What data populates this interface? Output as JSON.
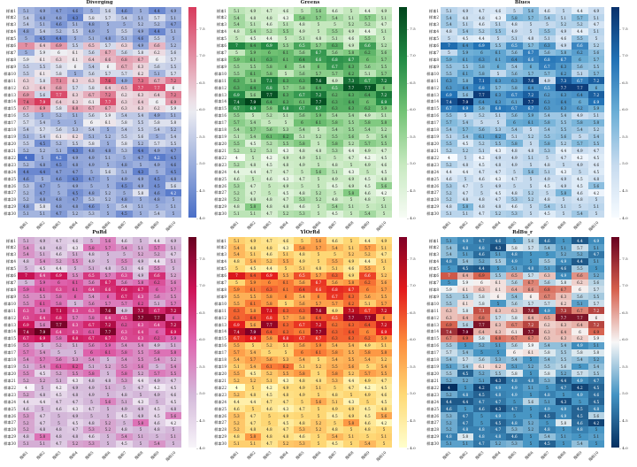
{
  "row_labels": [
    "样本1",
    "样本2",
    "样本3",
    "样本4",
    "样本5",
    "样本6",
    "样本7",
    "样本8",
    "样本9",
    "样本10",
    "样本11",
    "样本12",
    "样本13",
    "样本14",
    "样本15",
    "样本16",
    "样本17",
    "样本18",
    "样本19",
    "样本20",
    "样本21",
    "样本22",
    "样本23",
    "样本24",
    "样本25",
    "样本26",
    "样本27",
    "样本28",
    "样本29",
    "样本30"
  ],
  "col_labels": [
    "指标1",
    "指标2",
    "指标3",
    "指标4",
    "指标5",
    "指标6",
    "指标7",
    "指标8",
    "指标9",
    "指标10"
  ],
  "matrix": [
    [
      5.1,
      4.9,
      4.7,
      4.6,
      5,
      5.6,
      4.6,
      5,
      4.4,
      4.9
    ],
    [
      5.4,
      4.8,
      4.8,
      4.3,
      5.8,
      5.7,
      5.4,
      5.1,
      5.7,
      5.1
    ],
    [
      5.4,
      5.1,
      4.6,
      5.1,
      4.8,
      5,
      5,
      5.2,
      5.2,
      4.7
    ],
    [
      4.8,
      5.4,
      5.2,
      5.5,
      4.9,
      5,
      5.5,
      4.9,
      4.4,
      5.1
    ],
    [
      5,
      4.5,
      4.4,
      5,
      5.1,
      4.8,
      5.1,
      4.6,
      5.5,
      5
    ],
    [
      7,
      6.4,
      6.9,
      5.5,
      6.5,
      5.7,
      6.3,
      4.9,
      6.6,
      5.2
    ],
    [
      5,
      5.9,
      6,
      6.1,
      5.6,
      6.7,
      5.6,
      5.8,
      6.2,
      5.6
    ],
    [
      5.9,
      6.1,
      6.3,
      6.1,
      6.4,
      6.6,
      6.8,
      6.7,
      6,
      5.7
    ],
    [
      5.5,
      5.5,
      5.8,
      6,
      5.4,
      6,
      6.7,
      6.3,
      5.6,
      5.5
    ],
    [
      5.5,
      6.1,
      5.8,
      5,
      5.6,
      5.7,
      5.7,
      6.2,
      5.1,
      5.7
    ],
    [
      6.3,
      5.8,
      7.1,
      6.3,
      6.3,
      7.6,
      4.9,
      7.3,
      6.7,
      7.2
    ],
    [
      6.3,
      6.4,
      6.8,
      5.7,
      5.8,
      6.4,
      6.5,
      7.7,
      7.7,
      6
    ],
    [
      6.9,
      5.6,
      7.7,
      6.3,
      6.7,
      7.2,
      6.2,
      6.3,
      6.4,
      7.2
    ],
    [
      7.4,
      7.9,
      6.4,
      6.3,
      6.1,
      7.7,
      6.3,
      6.4,
      6,
      6.9
    ],
    [
      6.7,
      6.9,
      5.8,
      6.8,
      6.7,
      6.7,
      6.3,
      6.3,
      6.2,
      5.9
    ],
    [
      5.5,
      5,
      5.2,
      5.1,
      5.6,
      5.9,
      5.4,
      5.4,
      4.9,
      5.1
    ],
    [
      5.7,
      5.4,
      5,
      5,
      6,
      6.1,
      5.8,
      5.5,
      5.8,
      5.8
    ],
    [
      5.4,
      5.7,
      5.6,
      5.3,
      5.4,
      5,
      5.4,
      5.5,
      5.4,
      5.2
    ],
    [
      5.1,
      5.4,
      6.1,
      6.2,
      5.1,
      5.2,
      5.5,
      5.6,
      5,
      5.4
    ],
    [
      5.5,
      4.5,
      5.2,
      5.5,
      5.8,
      5,
      5.8,
      5.2,
      5.7,
      5.5
    ],
    [
      5.2,
      5.2,
      5.1,
      4.3,
      4.8,
      4.8,
      5.3,
      4.4,
      4.9,
      4.7
    ],
    [
      4,
      5,
      4.2,
      4.9,
      4.9,
      5.1,
      5,
      4.7,
      4.2,
      4.5
    ],
    [
      5.2,
      4.8,
      4.5,
      4.8,
      4.9,
      5,
      4.8,
      5,
      4.9,
      4.6
    ],
    [
      4.4,
      4.4,
      4.7,
      4.7,
      5,
      5.6,
      5.1,
      4.3,
      5,
      4.5
    ],
    [
      4.6,
      5,
      4.6,
      4.3,
      4.7,
      5,
      4.9,
      4.9,
      4.5,
      4.8
    ],
    [
      5.3,
      4.7,
      5,
      4.9,
      5,
      5,
      4.5,
      4.9,
      4.5,
      5.6
    ],
    [
      5.2,
      4.7,
      5,
      4.5,
      4.8,
      5.2,
      5,
      5.8,
      4.6,
      4.2
    ],
    [
      5.2,
      4.8,
      4.8,
      4.7,
      5.3,
      5.2,
      4.8,
      5,
      4.8,
      5
    ],
    [
      4.8,
      5.8,
      4.8,
      4.8,
      4.6,
      5,
      5.4,
      5.1,
      5,
      5.1
    ],
    [
      5.1,
      5.1,
      4.7,
      5.2,
      5.3,
      5,
      4.5,
      5,
      5.4,
      5
    ]
  ],
  "chart_data": [
    {
      "type": "heatmap",
      "title": "Diverging",
      "colormap": "diverging blue-white-red",
      "colors": [
        "#4a6fc7",
        "#eeeef2",
        "#d83a5c"
      ],
      "center": 6.0,
      "vmin": 4.0,
      "vmax": 7.9,
      "colorbar_ticks": [
        "4.0",
        "4.5",
        "5.0",
        "5.5",
        "6.0",
        "6.5",
        "7.0",
        "7.5"
      ]
    },
    {
      "type": "heatmap",
      "title": "Greens",
      "colormap": "Greens",
      "colors": [
        "#f7fcf5",
        "#c7e9c0",
        "#74c476",
        "#238b45",
        "#00441b"
      ],
      "vmin": 4.0,
      "vmax": 7.9,
      "colorbar_ticks": [
        "4.0",
        "4.5",
        "5.0",
        "5.5",
        "6.0",
        "6.5",
        "7.0",
        "7.5"
      ]
    },
    {
      "type": "heatmap",
      "title": "Blues",
      "colormap": "Blues",
      "colors": [
        "#f7fbff",
        "#c6dbef",
        "#6baed6",
        "#2171b5",
        "#08306b"
      ],
      "vmin": 4.0,
      "vmax": 7.9,
      "colorbar_ticks": [
        "4.0",
        "4.5",
        "5.0",
        "5.5",
        "6.0",
        "6.5",
        "7.0",
        "7.5"
      ]
    },
    {
      "type": "heatmap",
      "title": "PuRd",
      "colormap": "PuRd",
      "colors": [
        "#f7f4f9",
        "#d4b9da",
        "#df65b0",
        "#ce1256",
        "#67001f"
      ],
      "vmin": 4.0,
      "vmax": 7.9,
      "colorbar_ticks": [
        "4.0",
        "4.5",
        "5.0",
        "5.5",
        "6.0",
        "6.5",
        "7.0",
        "7.5"
      ]
    },
    {
      "type": "heatmap",
      "title": "YlOrRd",
      "colormap": "YlOrRd",
      "colors": [
        "#ffffcc",
        "#fed976",
        "#fd8d3c",
        "#e31a1c",
        "#800026"
      ],
      "vmin": 4.0,
      "vmax": 7.9,
      "colorbar_ticks": [
        "4.0",
        "4.5",
        "5.0",
        "5.5",
        "6.0",
        "6.5",
        "7.0",
        "7.5"
      ]
    },
    {
      "type": "heatmap",
      "title": "RdBu_r",
      "colormap": "RdBu_r",
      "colors": [
        "#053061",
        "#4393c3",
        "#f7f7f7",
        "#d6604d",
        "#67001f"
      ],
      "center": 5.95,
      "vmin": 4.0,
      "vmax": 7.9,
      "colorbar_ticks": [
        "4.0",
        "4.5",
        "5.0",
        "5.5",
        "6.0",
        "6.5",
        "7.0",
        "7.5"
      ]
    }
  ]
}
